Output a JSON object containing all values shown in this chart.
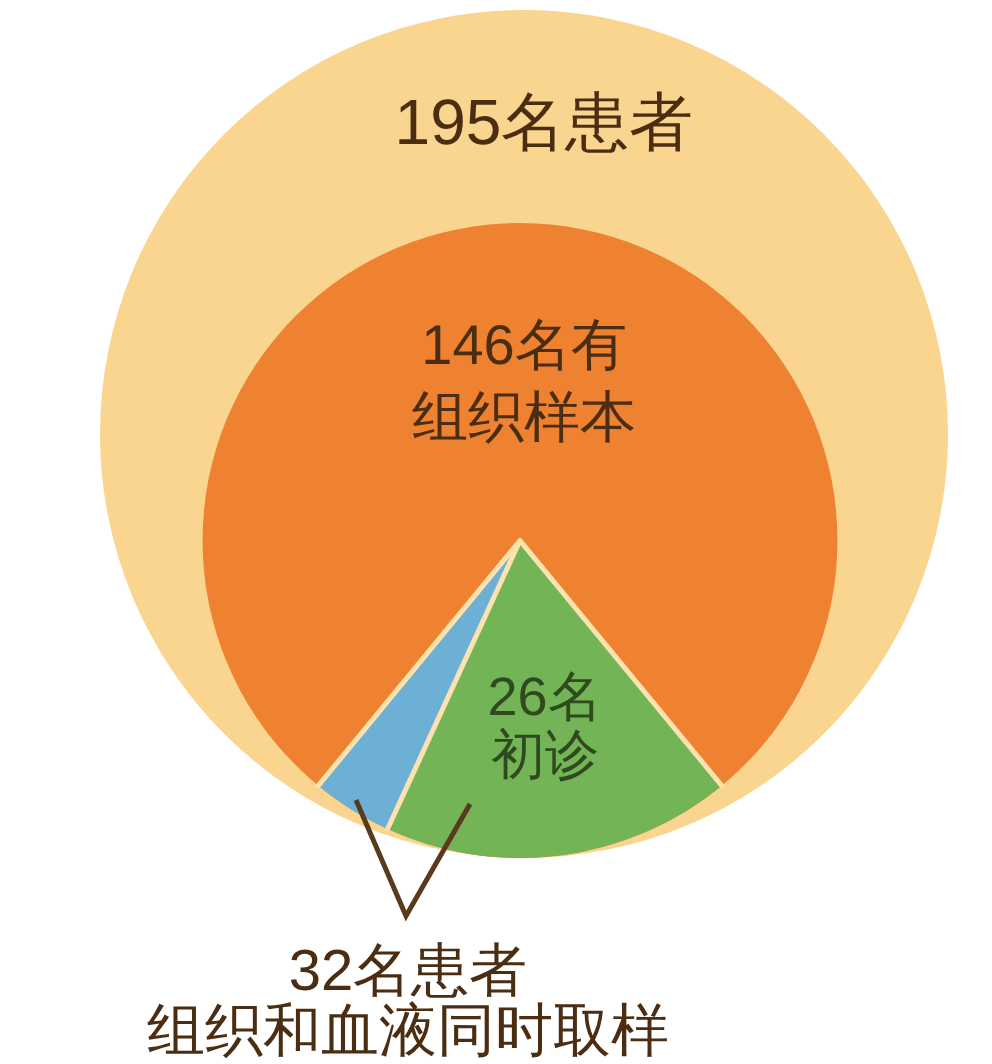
{
  "chart_data": {
    "type": "other",
    "categories": [
      "名患者",
      "名有组织样本",
      "名患者组织和血液同时取样",
      "名初诊"
    ],
    "values": [
      195,
      146,
      32,
      26
    ],
    "colors": [
      "#f9d590",
      "#ee8230",
      "#6cb0d6",
      "#73b456"
    ],
    "data_labels": true
  }
}
